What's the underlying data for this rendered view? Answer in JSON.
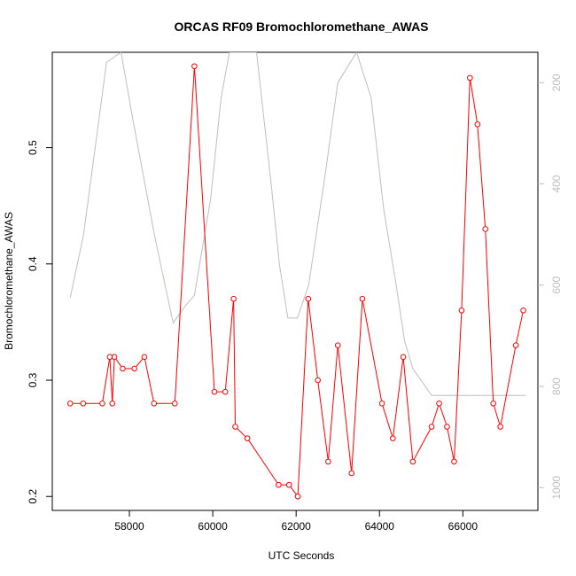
{
  "chart_data": {
    "type": "line",
    "title": "ORCAS RF09 Bromochloromethane_AWAS",
    "xlabel": "UTC Seconds",
    "ylabel": "Bromochloromethane_AWAS",
    "xlim": [
      56150,
      67800
    ],
    "ylim": [
      0.188,
      0.582
    ],
    "x_ticks": [
      58000,
      60000,
      62000,
      64000,
      66000
    ],
    "y_ticks": [
      0.2,
      0.3,
      0.4,
      0.5
    ],
    "y2_ticks": [
      200,
      400,
      600,
      800,
      1000
    ],
    "y2lim": [
      1045,
      140
    ],
    "grid": false,
    "series": [
      {
        "color": "#ff0000",
        "style": "line+circle",
        "x": [
          56580,
          56890,
          57350,
          57530,
          57590,
          57640,
          57840,
          58120,
          58360,
          58590,
          59090,
          59560,
          60040,
          60300,
          60500,
          60540,
          60830,
          61580,
          61830,
          62040,
          62290,
          62520,
          62770,
          63000,
          63330,
          63590,
          64060,
          64320,
          64570,
          64800,
          65250,
          65430,
          65620,
          65790,
          65970,
          66170,
          66350,
          66540,
          66730,
          66900,
          67270,
          67450
        ],
        "y": [
          0.28,
          0.28,
          0.28,
          0.32,
          0.28,
          0.32,
          0.31,
          0.31,
          0.32,
          0.28,
          0.28,
          0.57,
          0.29,
          0.29,
          0.37,
          0.26,
          0.25,
          0.21,
          0.21,
          0.2,
          0.37,
          0.3,
          0.23,
          0.33,
          0.22,
          0.37,
          0.28,
          0.25,
          0.32,
          0.23,
          0.26,
          0.28,
          0.26,
          0.23,
          0.36,
          0.56,
          0.52,
          0.43,
          0.28,
          0.26,
          0.33,
          0.36
        ]
      },
      {
        "color": "#bebebe",
        "style": "line",
        "axis": "right",
        "x": [
          56580,
          56900,
          57250,
          57450,
          57800,
          58100,
          58600,
          59050,
          59350,
          59560,
          59950,
          60200,
          60400,
          61050,
          61400,
          61600,
          61800,
          62030,
          62300,
          62700,
          63000,
          63450,
          63800,
          64100,
          64400,
          64600,
          64800,
          65250,
          65800,
          66600,
          67500
        ],
        "y": [
          625,
          500,
          285,
          160,
          140,
          280,
          500,
          675,
          640,
          620,
          430,
          230,
          140,
          140,
          400,
          560,
          665,
          665,
          600,
          380,
          200,
          140,
          230,
          450,
          600,
          710,
          765,
          818,
          818,
          818,
          818
        ]
      }
    ]
  }
}
